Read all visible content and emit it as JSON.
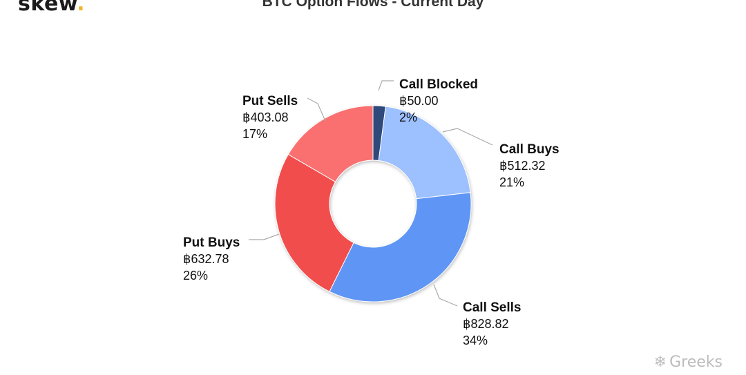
{
  "brand": {
    "text": "skew",
    "dot": "."
  },
  "watermark": {
    "icon": "wechat-icon",
    "glyph": "❄",
    "text": "Greeks"
  },
  "chart_data": {
    "type": "pie",
    "style": "donut",
    "title": "BTC Option Flows - Current Day",
    "currency_symbol": "฿",
    "slices": [
      {
        "name": "Call Blocked",
        "value": 50.0,
        "value_label": "฿50.00",
        "percent_label": "2%",
        "color": "#2e4a7a"
      },
      {
        "name": "Call Buys",
        "value": 512.32,
        "value_label": "฿512.32",
        "percent_label": "21%",
        "color": "#9dc0ff"
      },
      {
        "name": "Call Sells",
        "value": 828.82,
        "value_label": "฿828.82",
        "percent_label": "34%",
        "color": "#5f96f5"
      },
      {
        "name": "Put Buys",
        "value": 632.78,
        "value_label": "฿632.78",
        "percent_label": "26%",
        "color": "#f24e4e"
      },
      {
        "name": "Put Sells",
        "value": 403.08,
        "value_label": "฿403.08",
        "percent_label": "17%",
        "color": "#fa7070"
      }
    ]
  }
}
